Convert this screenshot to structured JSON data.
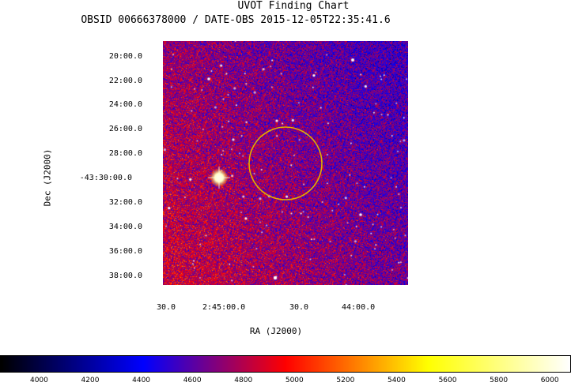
{
  "titles": {
    "main": "UVOT Finding Chart",
    "sub": "OBSID 00666378000 / DATE-OBS 2015-12-05T22:35:41.6"
  },
  "chart_data": {
    "type": "heatmap",
    "title": "UVOT Finding Chart",
    "subtitle": "OBSID 00666378000 / DATE-OBS 2015-12-05T22:35:41.6",
    "xlabel": "RA (J2000)",
    "ylabel": "Dec (J2000)",
    "x_ticks": [
      "30.0",
      "2:45:00.0",
      "30.0",
      "44:00.0"
    ],
    "y_ticks": [
      "20:00.0",
      "22:00.0",
      "24:00.0",
      "26:00.0",
      "28:00.0",
      "-43:30:00.0",
      "32:00.0",
      "34:00.0",
      "36:00.0",
      "38:00.0"
    ],
    "colorbar": {
      "ticks": [
        4000,
        4200,
        4400,
        4600,
        4800,
        5000,
        5200,
        5400,
        5600,
        5800,
        6000
      ],
      "range": [
        3850,
        6080
      ],
      "colormap": [
        "#000000",
        "#0000ff",
        "#ff0000",
        "#ffff00",
        "#ffffff"
      ]
    },
    "annotations": [
      {
        "type": "circle",
        "color": "#e0b000",
        "description": "region"
      }
    ],
    "grid": false
  },
  "colors": {
    "circle": "#e0b000",
    "background": "#ffffff"
  }
}
